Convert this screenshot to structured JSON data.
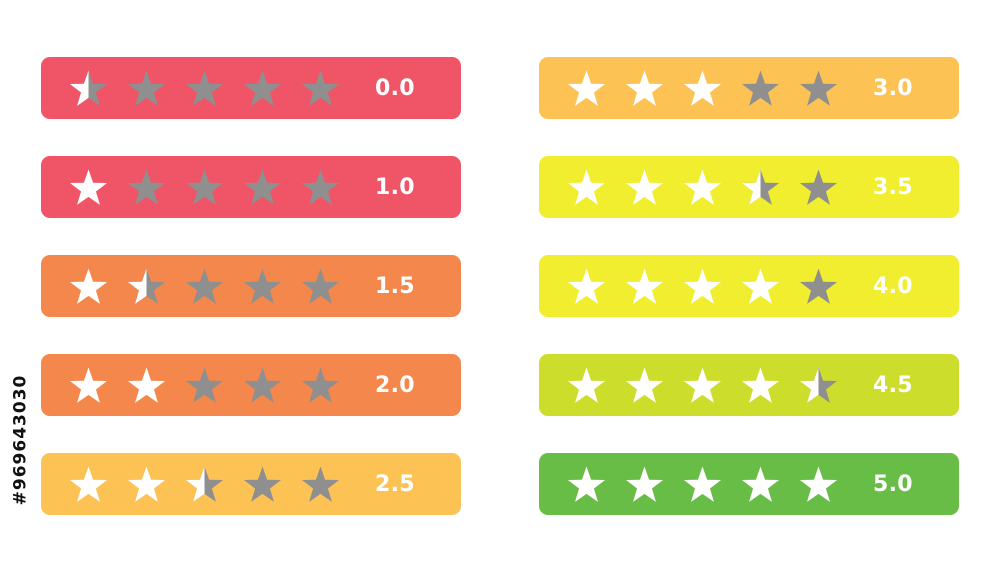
{
  "stock_id": "#969643030",
  "star_icon": "star-icon",
  "colors": {
    "star_filled": "#ffffff",
    "star_empty": "#8f8f8f"
  },
  "ratings": [
    {
      "label": "0.0",
      "rating": 0.0,
      "color": "#ef5566"
    },
    {
      "label": "1.0",
      "rating": 1.0,
      "color": "#ef5566"
    },
    {
      "label": "1.5",
      "rating": 1.5,
      "color": "#f4874b"
    },
    {
      "label": "2.0",
      "rating": 2.0,
      "color": "#f4874b"
    },
    {
      "label": "2.5",
      "rating": 2.5,
      "color": "#fdc254"
    },
    {
      "label": "3.0",
      "rating": 3.0,
      "color": "#fdc254"
    },
    {
      "label": "3.5",
      "rating": 3.5,
      "color": "#f0ee2e"
    },
    {
      "label": "4.0",
      "rating": 4.0,
      "color": "#f0ee2e"
    },
    {
      "label": "4.5",
      "rating": 4.5,
      "color": "#cddd2c"
    },
    {
      "label": "5.0",
      "rating": 5.0,
      "color": "#67bd45"
    }
  ]
}
